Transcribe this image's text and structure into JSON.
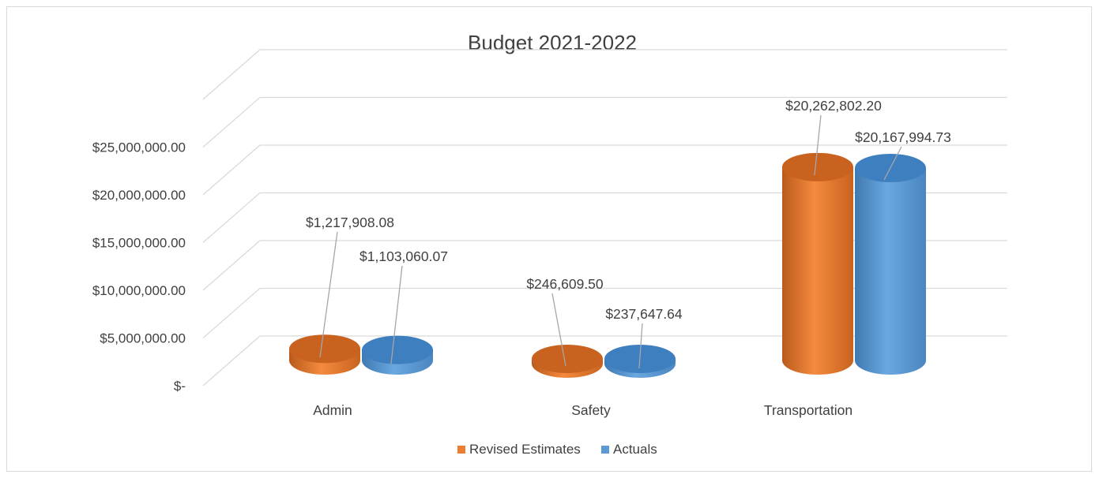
{
  "chart_data": {
    "type": "bar",
    "style": "3d-cylinder",
    "title": "Budget 2021-2022",
    "categories": [
      "Admin",
      "Safety",
      "Transportation"
    ],
    "series": [
      {
        "name": "Revised Estimates",
        "color": "#ed7d31",
        "values": [
          1217908.08,
          246609.5,
          20262802.2
        ],
        "labels": [
          "$1,217,908.08",
          "$246,609.50",
          "$20,262,802.20"
        ]
      },
      {
        "name": "Actuals",
        "color": "#5b9bd5",
        "values": [
          1103060.07,
          237647.64,
          20167994.73
        ],
        "labels": [
          "$1,103,060.07",
          "$237,647.64",
          "$20,167,994.73"
        ]
      }
    ],
    "y_ticks": [
      0,
      5000000,
      10000000,
      15000000,
      20000000,
      25000000
    ],
    "y_tick_labels": [
      "$-",
      "$5,000,000.00",
      "$10,000,000.00",
      "$15,000,000.00",
      "$20,000,000.00",
      "$25,000,000.00"
    ],
    "ylim": [
      0,
      30000000
    ],
    "grid": true,
    "legend_position": "bottom"
  }
}
